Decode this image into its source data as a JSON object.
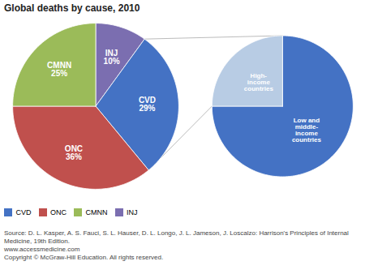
{
  "chart_data": [
    {
      "type": "pie",
      "title": "Global deaths by cause, 2010",
      "categories": [
        "INJ",
        "CVD",
        "ONC",
        "CMNN"
      ],
      "values": [
        10,
        29,
        36,
        25
      ],
      "colors": [
        "#7b6eb0",
        "#4472c4",
        "#c0504d",
        "#9bbb59"
      ],
      "data_labels": true,
      "value_labels": [
        "INJ\n10%",
        "CVD\n29%",
        "ONC\n36%",
        "CMNN\n25%"
      ],
      "legend": "lower left",
      "legend_entries": [
        {
          "name": "CVD",
          "color": "#4472c4"
        },
        {
          "name": "ONC",
          "color": "#c0504d"
        },
        {
          "name": "CMNN",
          "color": "#9bbb59"
        },
        {
          "name": "INJ",
          "color": "#7b6eb0"
        }
      ],
      "caption": "Source: D. L. Kasper, A. S. Fauci, S. L. Hauser, D. L. Longo, J. L. Jameson, J. Loscalzo: Harrison's Principles of Internal Medicine, 19th Edition.\nwww.accessmedicine.com\nCopyright © McGraw-Hill Education.  All rights reserved."
    },
    {
      "type": "pie",
      "categories": [
        "Low and\nmiddle-\nincome\ncountries",
        "High-\nincome\ncountries"
      ],
      "values": [
        75,
        25
      ],
      "colors": [
        "#4472c4",
        "#b8cce4"
      ],
      "data_labels": false
    }
  ]
}
